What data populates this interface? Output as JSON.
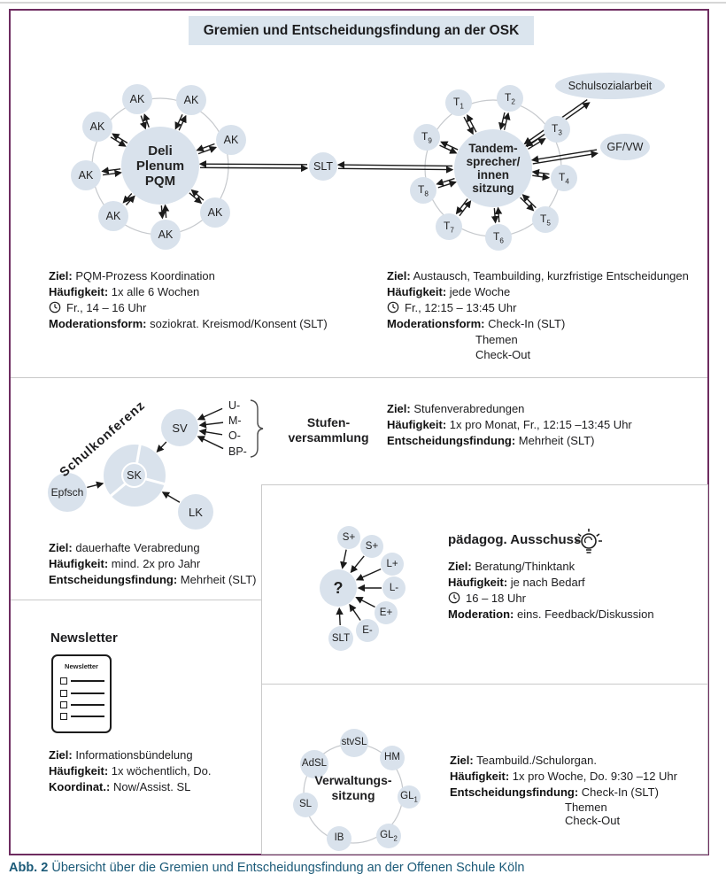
{
  "title": "Gremien und Entscheidungsfindung an der OSK",
  "caption": {
    "label": "Abb. 2",
    "text": "Übersicht über die Gremien und Entscheidungsfindung an der Offenen Schule Köln"
  },
  "colors": {
    "node_fill": "#d9e2ec",
    "frame": "#6e2c60",
    "caption_text": "#1b5a78",
    "ring": "#c6c9cd"
  },
  "hub_deli": {
    "center_lines": [
      "Deli",
      "Plenum",
      "PQM"
    ],
    "satellite_label": "AK",
    "info": [
      {
        "label": "Ziel:",
        "value": "PQM-Prozess Koordination"
      },
      {
        "label": "Häufigkeit:",
        "value": "1x alle 6 Wochen"
      },
      {
        "label": "Moderationsform:",
        "value": "soziokrat. Kreismod/Konsent (SLT)"
      }
    ],
    "clock_text": "Fr., 14 – 16 Uhr"
  },
  "slt": {
    "label": "SLT"
  },
  "hub_tandem": {
    "center_lines": [
      "Tandem-",
      "sprecher/",
      "innen",
      "sitzung"
    ],
    "sats": [
      {
        "m": "T",
        "s": "1"
      },
      {
        "m": "T",
        "s": "2"
      },
      {
        "m": "T",
        "s": "3"
      },
      {
        "m": "T",
        "s": "4"
      },
      {
        "m": "T",
        "s": "5"
      },
      {
        "m": "T",
        "s": "6"
      },
      {
        "m": "T",
        "s": "7"
      },
      {
        "m": "T",
        "s": "8"
      },
      {
        "m": "T",
        "s": "9"
      }
    ],
    "ellipse_labels": {
      "schulsozialarbeit": "Schulsozialarbeit",
      "gfvw": "GF/VW"
    },
    "info": [
      {
        "label": "Ziel:",
        "value": "Austausch, Teambuilding, kurzfristige Entscheidungen"
      },
      {
        "label": "Häufigkeit:",
        "value": "jede Woche"
      }
    ],
    "clock_text": "Fr., 12:15 – 13:45 Uhr",
    "moderation": {
      "label": "Moderationsform:",
      "value": "Check-In (SLT)",
      "cont": [
        "Themen",
        "Check-Out"
      ]
    }
  },
  "schulkonferenz": {
    "arc_label": "Schulkonferenz",
    "nodes": {
      "sk": "SK",
      "sv": "SV",
      "epfsch": "Epfsch",
      "lk": "LK"
    },
    "stufen_items": [
      "U-",
      "M-",
      "O-",
      "BP-"
    ],
    "stufen_title_lines": [
      "Stufen-",
      "versammlung"
    ],
    "info": [
      {
        "label": "Ziel:",
        "value": "dauerhafte Verabredung"
      },
      {
        "label": "Häufigkeit:",
        "value": "mind. 2x pro Jahr"
      },
      {
        "label": "Entscheidungsfindung:",
        "value": "Mehrheit (SLT)"
      }
    ]
  },
  "stufenversammlung": {
    "info": [
      {
        "label": "Ziel:",
        "value": "Stufenverabredungen"
      },
      {
        "label": "Häufigkeit:",
        "value": "1x pro Monat, Fr., 12:15 –13:45 Uhr"
      },
      {
        "label": "Entscheidungsfindung:",
        "value": "Mehrheit (SLT)"
      }
    ]
  },
  "paedagog": {
    "heading": "pädagog. Ausschuss",
    "question_label": "?",
    "sats": [
      "S+",
      "S+",
      "L+",
      "L-",
      "E+",
      "E-",
      "SLT"
    ],
    "info": [
      {
        "label": "Ziel:",
        "value": "Beratung/Thinktank"
      },
      {
        "label": "Häufigkeit:",
        "value": "je nach Bedarf"
      }
    ],
    "clock_text": "16 – 18 Uhr",
    "moderation": {
      "label": "Moderation:",
      "value": "eins. Feedback/Diskussion"
    }
  },
  "newsletter": {
    "heading": "Newsletter",
    "icon_title": "Newsletter",
    "info": [
      {
        "label": "Ziel:",
        "value": "Informationsbündelung"
      },
      {
        "label": "Häufigkeit:",
        "value": "1x wöchentlich, Do."
      },
      {
        "label": "Koordinat.:",
        "value": "Now/Assist. SL"
      }
    ]
  },
  "verwaltung": {
    "center_lines": [
      "Verwaltungs-",
      "sitzung"
    ],
    "sats": [
      {
        "m": "stvSL"
      },
      {
        "m": "HM"
      },
      {
        "m": "GL",
        "s": "1"
      },
      {
        "m": "GL",
        "s": "2"
      },
      {
        "m": "IB"
      },
      {
        "m": "SL"
      },
      {
        "m": "AdSL"
      }
    ],
    "info": [
      {
        "label": "Ziel:",
        "value": "Teambuild./Schulorgan."
      },
      {
        "label": "Häufigkeit:",
        "value": "1x pro Woche, Do. 9:30 –12 Uhr"
      }
    ],
    "entscheidung": {
      "label": "Entscheidungsfindung:",
      "value": "Check-In (SLT)",
      "cont": [
        "Themen",
        "Check-Out"
      ]
    }
  }
}
